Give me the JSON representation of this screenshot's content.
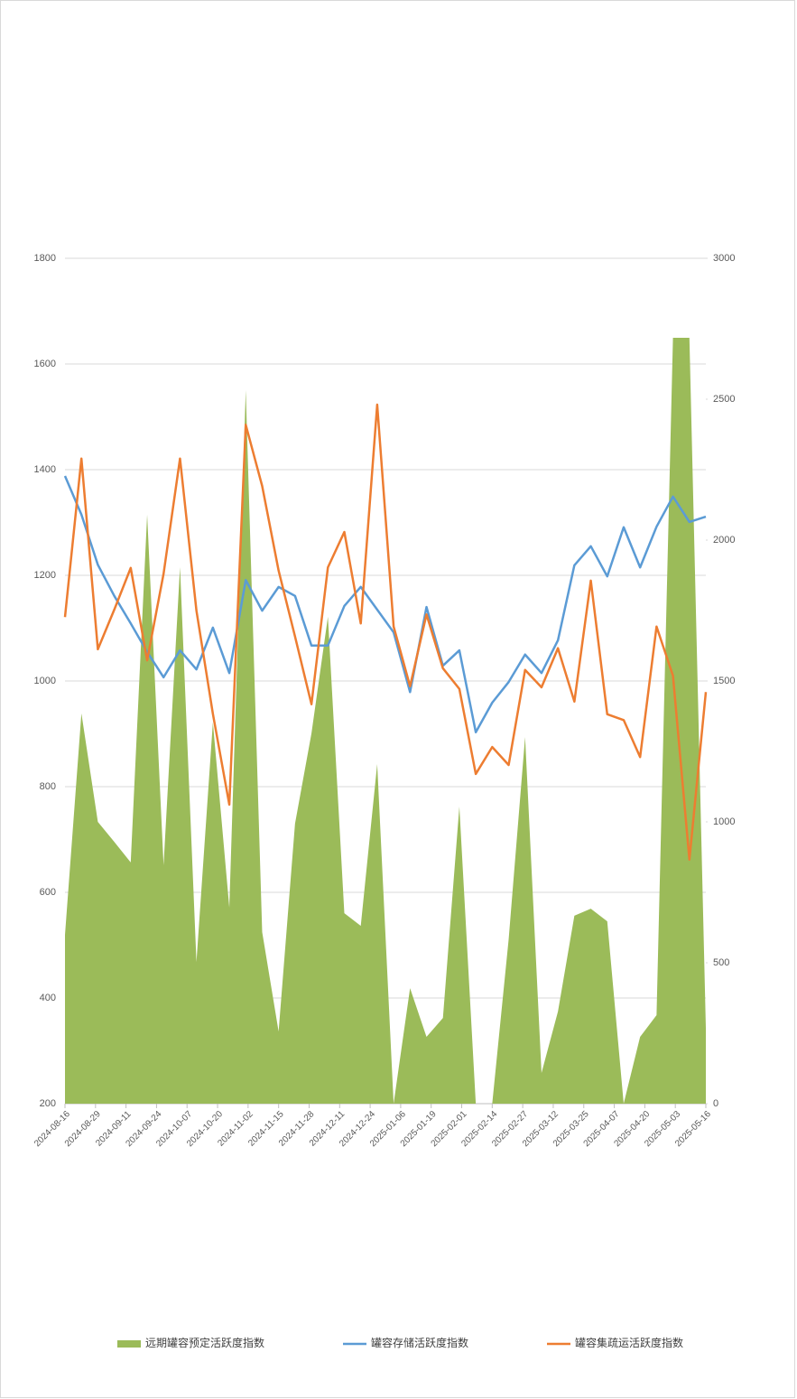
{
  "chart_data": {
    "type": "line",
    "x": [
      "2024-08-16",
      "2024-08-23",
      "2024-08-30",
      "2024-09-06",
      "2024-09-13",
      "2024-09-20",
      "2024-09-27",
      "2024-10-04",
      "2024-10-11",
      "2024-10-18",
      "2024-10-25",
      "2024-11-01",
      "2024-11-08",
      "2024-11-15",
      "2024-11-22",
      "2024-11-29",
      "2024-12-06",
      "2024-12-13",
      "2024-12-20",
      "2024-12-27",
      "2025-01-03",
      "2025-01-10",
      "2025-01-17",
      "2025-01-24",
      "2025-01-31",
      "2025-02-07",
      "2025-02-14",
      "2025-02-21",
      "2025-02-28",
      "2025-03-07",
      "2025-03-14",
      "2025-03-21",
      "2025-03-28",
      "2025-04-04",
      "2025-04-11",
      "2025-04-18",
      "2025-04-25",
      "2025-05-02",
      "2025-05-09",
      "2025-05-16"
    ],
    "xlim": [
      "2024-08-16",
      "2025-05-16"
    ],
    "xticks": [
      "2024-08-16",
      "2024-08-29",
      "2024-09-11",
      "2024-09-24",
      "2024-10-07",
      "2024-10-20",
      "2024-11-02",
      "2024-11-15",
      "2024-11-28",
      "2024-12-11",
      "2024-12-24",
      "2025-01-06",
      "2025-01-19",
      "2025-02-01",
      "2025-02-14",
      "2025-02-27",
      "2025-03-12",
      "2025-03-25",
      "2025-04-07",
      "2025-04-20",
      "2025-05-03",
      "2025-05-16"
    ],
    "ylim": [
      200,
      1800
    ],
    "yticks": [
      200,
      400,
      600,
      800,
      1000,
      1200,
      1400,
      1600,
      1800
    ],
    "y2lim": [
      0,
      3000
    ],
    "y2ticks": [
      0,
      500,
      1000,
      1500,
      2000,
      2500,
      3000
    ],
    "grid": true,
    "legend": "bottom",
    "series": [
      {
        "name": "远期罐容预定活跃度指数",
        "color": "#9bbb59",
        "kind": "area",
        "axis": "y2",
        "values": [
          599,
          1385,
          1000,
          929,
          856,
          2090,
          846,
          1904,
          503,
          1353,
          696,
          2532,
          609,
          256,
          994,
          1314,
          1728,
          676,
          631,
          1205,
          0,
          410,
          237,
          304,
          1054,
          0,
          0,
          583,
          1301,
          109,
          327,
          667,
          692,
          647,
          0,
          237,
          314,
          2718,
          2718,
          269
        ]
      },
      {
        "name": "罐容存储活跃度指数",
        "color": "#5b9bd5",
        "kind": "line",
        "values": [
          1388,
          1315,
          1220,
          1161,
          1109,
          1055,
          1007,
          1058,
          1022,
          1101,
          1015,
          1191,
          1133,
          1178,
          1161,
          1067,
          1067,
          1142,
          1178,
          1135,
          1092,
          979,
          1140,
          1029,
          1058,
          903,
          959,
          998,
          1050,
          1015,
          1077,
          1219,
          1255,
          1198,
          1291,
          1215,
          1292,
          1349,
          1301,
          1311
        ]
      },
      {
        "name": "罐容集疏运活跃度指数",
        "color": "#ed7d31",
        "kind": "line",
        "values": [
          1121,
          1421,
          1060,
          1135,
          1214,
          1039,
          1203,
          1421,
          1133,
          938,
          766,
          1485,
          1369,
          1209,
          1084,
          956,
          1215,
          1282,
          1109,
          1523,
          1103,
          990,
          1126,
          1024,
          985,
          824,
          875,
          841,
          1021,
          988,
          1062,
          961,
          1190,
          937,
          926,
          856,
          1103,
          1010,
          662,
          979
        ]
      }
    ]
  }
}
